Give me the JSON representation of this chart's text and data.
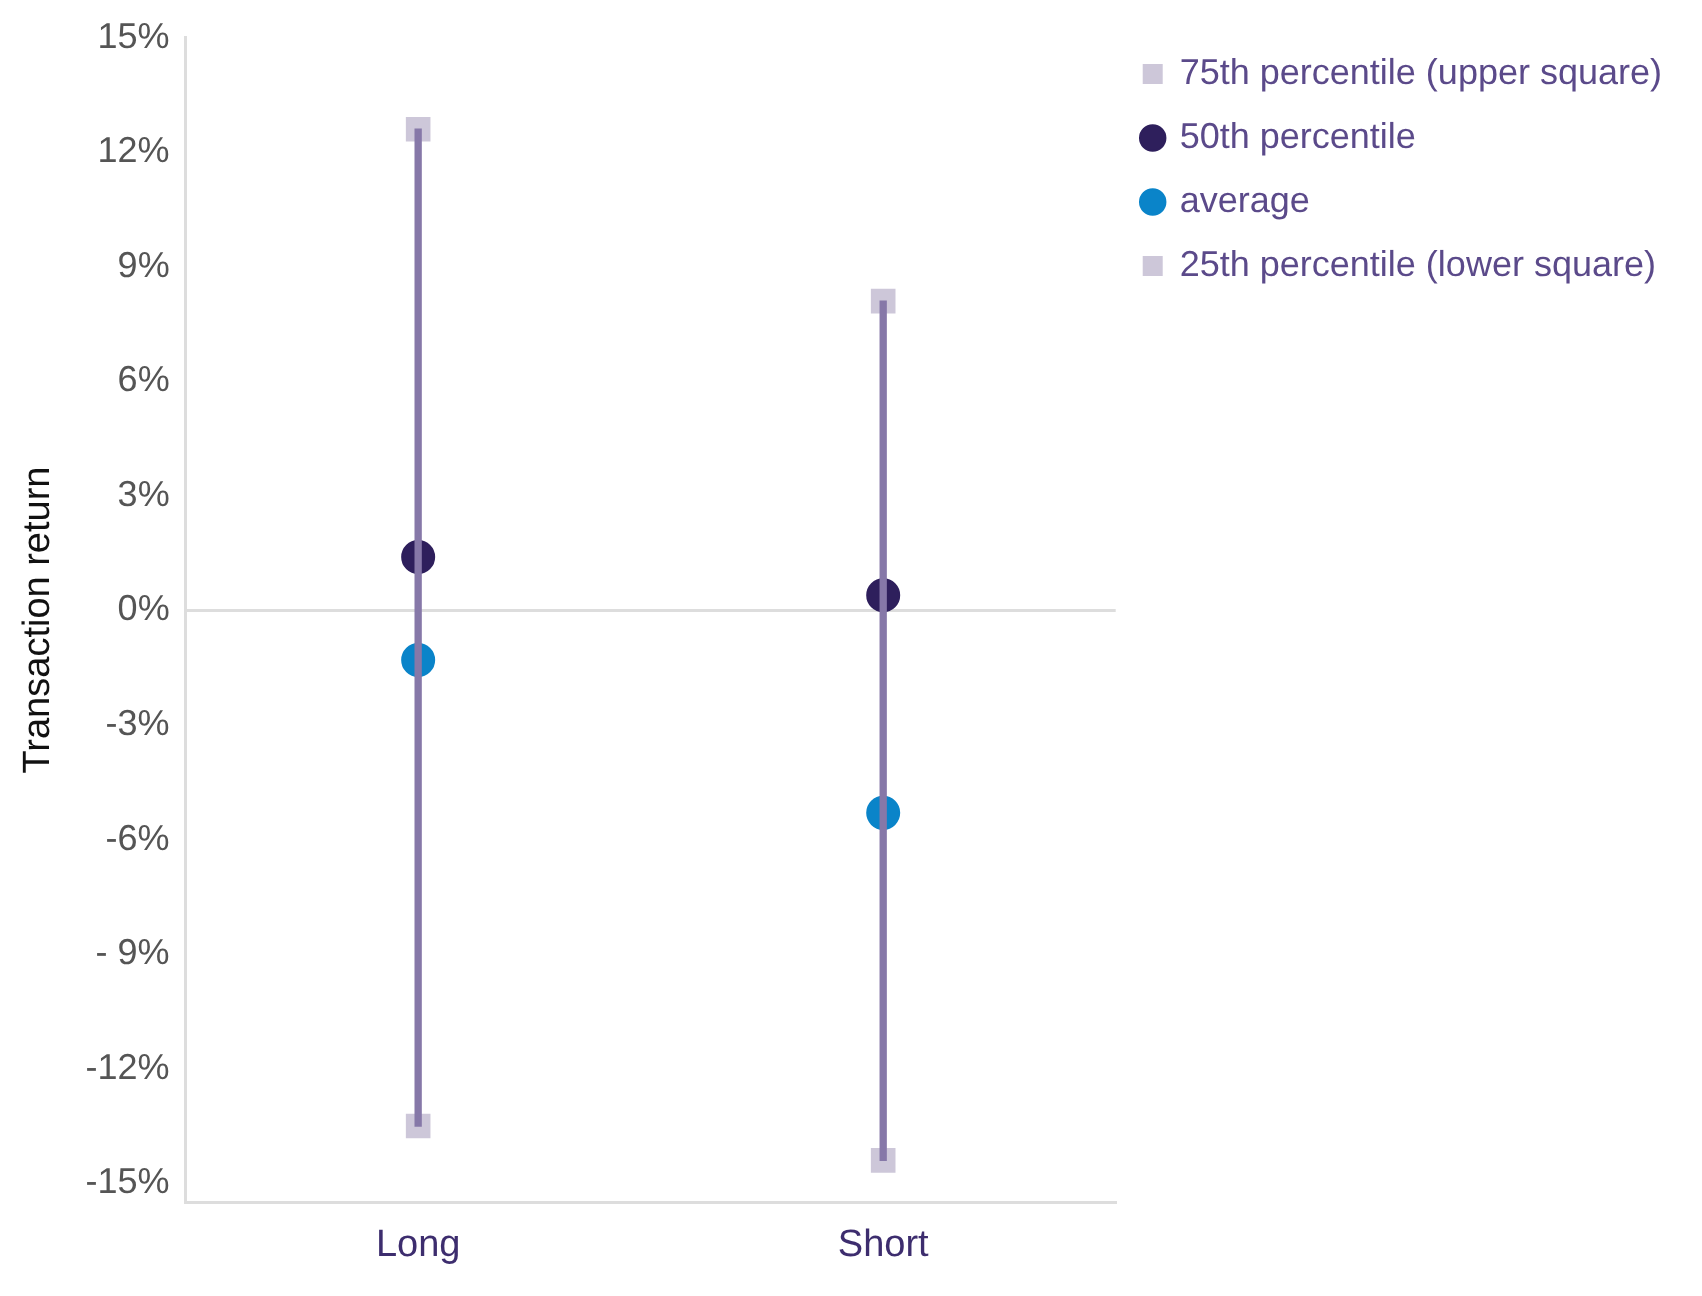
{
  "chart_data": {
    "type": "scatter",
    "ylabel": "Transaction return",
    "categories": [
      "Long",
      "Short"
    ],
    "series": [
      {
        "type": "bar",
        "color": "#8678a8",
        "base": [
          -13.5,
          -14.4
        ],
        "values": [
          26.1,
          22.5
        ]
      },
      {
        "name": "75th percentile (upper square)",
        "color": "#cdc7d9",
        "marker": "square",
        "values": [
          12.6,
          8.1
        ]
      },
      {
        "name": "50th percentile",
        "color": "#2e1f5c",
        "marker": "circle",
        "values": [
          1.4,
          0.4
        ]
      },
      {
        "name": "average",
        "color": "#0a84c9",
        "marker": "circle",
        "values": [
          -1.3,
          -5.3
        ]
      },
      {
        "name": "25th percentile (lower square)",
        "color": "#cdc7d9",
        "marker": "square",
        "values": [
          -13.5,
          -14.4
        ]
      }
    ],
    "ylim": [
      -15.5,
      15
    ],
    "yticks": [
      {
        "value": 15,
        "label": "15%"
      },
      {
        "value": 12,
        "label": "12%"
      },
      {
        "value": 9,
        "label": "9%"
      },
      {
        "value": 6,
        "label": "6%"
      },
      {
        "value": 3,
        "label": "3%"
      },
      {
        "value": 0,
        "label": "0%"
      },
      {
        "value": -3,
        "label": "-3%"
      },
      {
        "value": -6,
        "label": "-6%"
      },
      {
        "value": -9,
        "label": "- 9%"
      },
      {
        "value": -12,
        "label": "-12%"
      },
      {
        "value": -15,
        "label": "-15%"
      }
    ],
    "ref_lines": [
      {
        "axis": "y",
        "value": 0,
        "color": "#dddddd"
      }
    ],
    "grid": false,
    "legend": "top right"
  }
}
